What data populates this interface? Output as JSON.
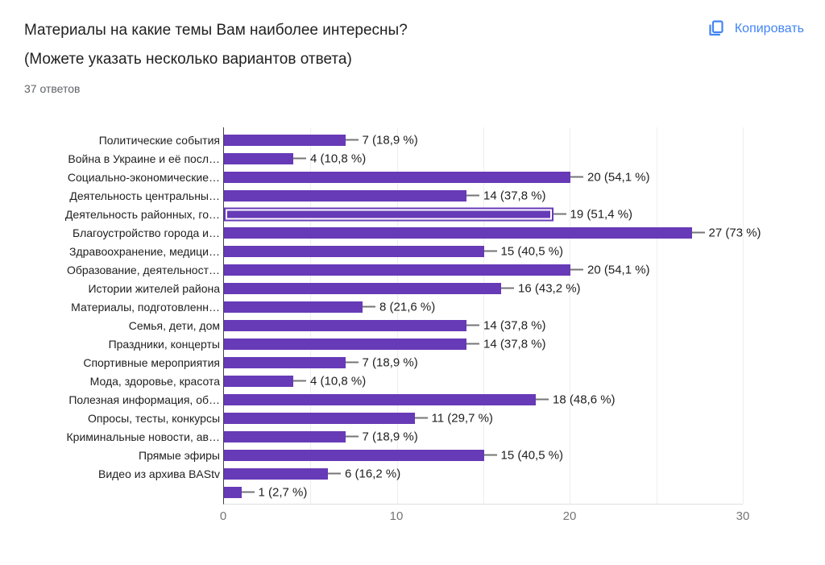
{
  "header": {
    "title_line1": "Материалы на какие темы Вам наиболее интересны?",
    "title_line2": "(Можете указать несколько вариантов ответа)",
    "responses_count": "37 ответов",
    "copy_button_label": "Копировать"
  },
  "colors": {
    "bar": "#673ab7",
    "accent_blue": "#4285f4",
    "axis_line": "#424242",
    "gridline": "#eeeeee",
    "tick_text": "#757575",
    "label_text": "#212121"
  },
  "chart_data": {
    "type": "bar",
    "orientation": "horizontal",
    "title": "Материалы на какие темы Вам наиболее интересны? (Можете указать несколько вариантов ответа)",
    "xlabel": "",
    "ylabel": "",
    "xlim": [
      0,
      30
    ],
    "x_ticks": [
      "0",
      "10",
      "20",
      "30"
    ],
    "gridline_values": [
      5,
      10,
      15,
      20,
      25,
      30
    ],
    "grid": true,
    "legend_position": "none",
    "highlighted_index": 4,
    "categories": [
      "Политические события",
      "Война в Украине и её посл…",
      "Социально-экономические…",
      "Деятельность центральны…",
      "Деятельность районных, го…",
      "Благоустройство города и…",
      "Здравоохранение, медици…",
      "Образование, деятельност…",
      "Истории жителей района",
      "Материалы, подготовленн…",
      "Семья, дети, дом",
      "Праздники, концерты",
      "Спортивные мероприятия",
      "Мода, здоровье, красота",
      "Полезная информация, об…",
      "Опросы, тесты, конкурсы",
      "Криминальные новости, ав…",
      "Прямые эфиры",
      "Видео из архива BAStv",
      ""
    ],
    "values": [
      7,
      4,
      20,
      14,
      19,
      27,
      15,
      20,
      16,
      8,
      14,
      14,
      7,
      4,
      18,
      11,
      7,
      15,
      6,
      1
    ],
    "value_labels": [
      "7 (18,9 %)",
      "4 (10,8 %)",
      "20 (54,1 %)",
      "14 (37,8 %)",
      "19 (51,4 %)",
      "27 (73 %)",
      "15 (40,5 %)",
      "20 (54,1 %)",
      "16 (43,2 %)",
      "8 (21,6 %)",
      "14 (37,8 %)",
      "14 (37,8 %)",
      "7 (18,9 %)",
      "4 (10,8 %)",
      "18 (48,6 %)",
      "11 (29,7 %)",
      "7 (18,9 %)",
      "15 (40,5 %)",
      "6 (16,2 %)",
      "1 (2,7 %)"
    ]
  }
}
